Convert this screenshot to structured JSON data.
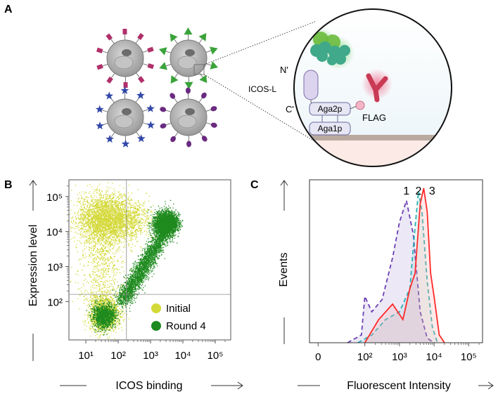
{
  "panels": {
    "a": {
      "letter": "A"
    },
    "b": {
      "letter": "B"
    },
    "c": {
      "letter": "C"
    }
  },
  "diagram": {
    "n_terminus": "N'",
    "c_terminus": "C'",
    "ligand": "ICOS-L",
    "aga2p": "Aga2p",
    "aga1p": "Aga1p",
    "flag": "FLAG"
  },
  "colors": {
    "initial": "#d4d93a",
    "round4": "#1e8a1e",
    "curve1": "#6a3fb5",
    "curve2": "#2ab0b0",
    "curve3": "#ff2a2a",
    "magenta": "#b0306a",
    "green_tri": "#3aa33a",
    "blue_star": "#3248a8",
    "purple_oval": "#6a2a80"
  },
  "chart_data": [
    {
      "type": "scatter",
      "panel": "B",
      "xlabel": "ICOS binding",
      "ylabel": "Expression level",
      "x_scale": "log",
      "y_scale": "log",
      "xlim": [
        3,
        300000
      ],
      "ylim": [
        8,
        300000
      ],
      "x_ticks": [
        "10¹",
        "10²",
        "10³",
        "10⁴",
        "10⁵"
      ],
      "y_ticks": [
        "10²",
        "10³",
        "10⁴",
        "10⁵"
      ],
      "gate": {
        "x": 180,
        "y": 160
      },
      "series": [
        {
          "name": "Initial",
          "color": "#d4d93a"
        },
        {
          "name": "Round 4",
          "color": "#1e8a1e"
        }
      ]
    },
    {
      "type": "area",
      "panel": "C",
      "xlabel": "Fluorescent Intensity",
      "ylabel": "Events",
      "x_ticks": [
        "0",
        "10²",
        "10³",
        "10⁴",
        "10⁵"
      ],
      "series": [
        {
          "name": "1",
          "style": "dashed",
          "color": "#6a3fb5",
          "x": [
            1.5,
            1.9,
            2.0,
            2.2,
            2.5,
            2.8,
            3.0,
            3.2,
            3.4,
            3.6,
            3.8,
            4.0
          ],
          "y": [
            0,
            0.05,
            0.3,
            0.2,
            0.28,
            0.55,
            0.78,
            0.92,
            0.7,
            0.2,
            0.03,
            0
          ]
        },
        {
          "name": "2",
          "style": "dashed",
          "color": "#2ab0b0",
          "x": [
            1.8,
            2.2,
            2.6,
            3.0,
            3.3,
            3.45,
            3.55,
            3.65,
            3.8,
            3.95,
            4.1
          ],
          "y": [
            0,
            0.05,
            0.15,
            0.2,
            0.35,
            0.75,
            0.98,
            0.85,
            0.4,
            0.1,
            0
          ]
        },
        {
          "name": "3",
          "style": "solid",
          "color": "#ff2a2a",
          "x": [
            2.0,
            2.4,
            2.8,
            3.1,
            3.3,
            3.45,
            3.6,
            3.7,
            3.8,
            3.9,
            4.0,
            4.15,
            4.3
          ],
          "y": [
            0,
            0.15,
            0.25,
            0.15,
            0.35,
            0.45,
            0.9,
            1.0,
            0.85,
            0.45,
            0.3,
            0.05,
            0
          ]
        }
      ]
    }
  ]
}
